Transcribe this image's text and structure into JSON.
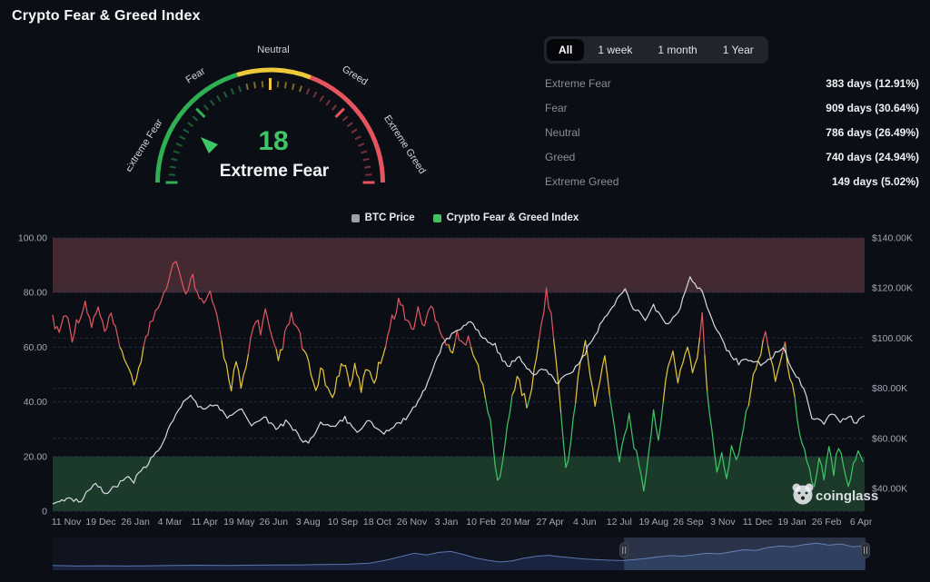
{
  "page": {
    "title": "Crypto Fear & Greed Index"
  },
  "gauge": {
    "value": "18",
    "status": "Extreme Fear",
    "scale_labels": {
      "extreme_fear": "Extreme Fear",
      "fear": "Fear",
      "neutral": "Neutral",
      "greed": "Greed",
      "extreme_greed": "Extreme Greed"
    },
    "colors": {
      "green": "#2eb053",
      "yellow": "#edc93b",
      "red": "#e45560",
      "value": "#3ec565"
    }
  },
  "tabs": {
    "items": [
      {
        "label": "All",
        "active": true
      },
      {
        "label": "1 week",
        "active": false
      },
      {
        "label": "1 month",
        "active": false
      },
      {
        "label": "1 Year",
        "active": false
      }
    ]
  },
  "stats": {
    "rows": [
      {
        "label": "Extreme Fear",
        "value": "383 days (12.91%)"
      },
      {
        "label": "Fear",
        "value": "909 days (30.64%)"
      },
      {
        "label": "Neutral",
        "value": "786 days (26.49%)"
      },
      {
        "label": "Greed",
        "value": "740 days (24.94%)"
      },
      {
        "label": "Extreme Greed",
        "value": "149 days (5.02%)"
      }
    ]
  },
  "legend": {
    "items": [
      {
        "label": "BTC Price",
        "color": "#9aa1ab"
      },
      {
        "label": "Crypto Fear & Greed Index",
        "color": "#3cc55e"
      }
    ]
  },
  "watermark": {
    "text": "coinglass"
  },
  "chart_data": {
    "type": "line",
    "title": "Crypto Fear & Greed Index vs BTC Price",
    "x_tick_labels": [
      "11 Nov",
      "19 Dec",
      "26 Jan",
      "4 Mar",
      "11 Apr",
      "19 May",
      "26 Jun",
      "3 Aug",
      "10 Sep",
      "18 Oct",
      "26 Nov",
      "3 Jan",
      "10 Feb",
      "20 Mar",
      "27 Apr",
      "4 Jun",
      "12 Jul",
      "19 Aug",
      "26 Sep",
      "3 Nov",
      "11 Dec",
      "19 Jan",
      "26 Feb",
      "6 Apr"
    ],
    "left_axis": {
      "ticks": [
        "100.00",
        "80.00",
        "60.00",
        "40.00",
        "20.00",
        "0"
      ],
      "tick_values": [
        100,
        80,
        60,
        40,
        20,
        0
      ],
      "range": [
        0,
        100
      ]
    },
    "right_axis": {
      "ticks": [
        "$140.00K",
        "$120.00K",
        "$100.00K",
        "$80.00K",
        "$60.00K",
        "$40.00K"
      ],
      "tick_values": [
        140,
        120,
        100,
        80,
        60,
        40
      ],
      "unit": "USD thousands"
    },
    "bands": [
      {
        "from": 80,
        "to": 100,
        "color": "#432a31",
        "label": "extreme-greed-zone"
      },
      {
        "from": 0,
        "to": 20,
        "color": "#1c3a2a",
        "label": "extreme-fear-zone"
      }
    ],
    "grid": true,
    "legend_position": "top-center",
    "series": [
      {
        "name": "BTC Price",
        "axis": "right",
        "color": "#d7dae0",
        "unit": "K USD",
        "points": [
          [
            0,
            34.5
          ],
          [
            0.02,
            36
          ],
          [
            0.035,
            35
          ],
          [
            0.05,
            42
          ],
          [
            0.065,
            38.5
          ],
          [
            0.08,
            41
          ],
          [
            0.09,
            44.5
          ],
          [
            0.1,
            43
          ],
          [
            0.115,
            49
          ],
          [
            0.13,
            55
          ],
          [
            0.145,
            65
          ],
          [
            0.155,
            72
          ],
          [
            0.17,
            77
          ],
          [
            0.185,
            71
          ],
          [
            0.2,
            74
          ],
          [
            0.215,
            68
          ],
          [
            0.23,
            72
          ],
          [
            0.245,
            66
          ],
          [
            0.26,
            69
          ],
          [
            0.275,
            64
          ],
          [
            0.29,
            67
          ],
          [
            0.305,
            60
          ],
          [
            0.315,
            58
          ],
          [
            0.33,
            66
          ],
          [
            0.345,
            64
          ],
          [
            0.36,
            68
          ],
          [
            0.375,
            63
          ],
          [
            0.39,
            67
          ],
          [
            0.405,
            62
          ],
          [
            0.42,
            65
          ],
          [
            0.435,
            68
          ],
          [
            0.45,
            74
          ],
          [
            0.465,
            85
          ],
          [
            0.48,
            97
          ],
          [
            0.5,
            104
          ],
          [
            0.515,
            106
          ],
          [
            0.53,
            100
          ],
          [
            0.545,
            97
          ],
          [
            0.56,
            88
          ],
          [
            0.575,
            93
          ],
          [
            0.59,
            85
          ],
          [
            0.605,
            88
          ],
          [
            0.62,
            82
          ],
          [
            0.635,
            86
          ],
          [
            0.65,
            90
          ],
          [
            0.665,
            100
          ],
          [
            0.68,
            108
          ],
          [
            0.695,
            115
          ],
          [
            0.705,
            120
          ],
          [
            0.715,
            112
          ],
          [
            0.73,
            108
          ],
          [
            0.74,
            113
          ],
          [
            0.755,
            105
          ],
          [
            0.77,
            110
          ],
          [
            0.785,
            124
          ],
          [
            0.8,
            118
          ],
          [
            0.815,
            105
          ],
          [
            0.83,
            95
          ],
          [
            0.845,
            90
          ],
          [
            0.86,
            92
          ],
          [
            0.875,
            89
          ],
          [
            0.89,
            94
          ],
          [
            0.9,
            96
          ],
          [
            0.91,
            88
          ],
          [
            0.925,
            80
          ],
          [
            0.935,
            68
          ],
          [
            0.95,
            66
          ],
          [
            0.96,
            70
          ],
          [
            0.97,
            67
          ],
          [
            0.98,
            69
          ],
          [
            0.99,
            66
          ],
          [
            1,
            69
          ]
        ]
      },
      {
        "name": "Crypto Fear & Greed Index",
        "axis": "left",
        "thresholds": {
          "high": 60,
          "low": 40
        },
        "colors": {
          "high": "#dc5560",
          "mid": "#e2c23c",
          "low": "#3dc364"
        },
        "points": [
          [
            0,
            70
          ],
          [
            0.008,
            66
          ],
          [
            0.016,
            73
          ],
          [
            0.024,
            64
          ],
          [
            0.032,
            71
          ],
          [
            0.04,
            75
          ],
          [
            0.048,
            68
          ],
          [
            0.056,
            74
          ],
          [
            0.064,
            65
          ],
          [
            0.072,
            71
          ],
          [
            0.08,
            63
          ],
          [
            0.088,
            57
          ],
          [
            0.094,
            50
          ],
          [
            0.1,
            46
          ],
          [
            0.106,
            53
          ],
          [
            0.112,
            60
          ],
          [
            0.12,
            68
          ],
          [
            0.13,
            76
          ],
          [
            0.14,
            83
          ],
          [
            0.148,
            90
          ],
          [
            0.152,
            93
          ],
          [
            0.158,
            84
          ],
          [
            0.164,
            78
          ],
          [
            0.17,
            87
          ],
          [
            0.178,
            82
          ],
          [
            0.186,
            75
          ],
          [
            0.194,
            80
          ],
          [
            0.202,
            70
          ],
          [
            0.208,
            62
          ],
          [
            0.214,
            53
          ],
          [
            0.22,
            46
          ],
          [
            0.226,
            55
          ],
          [
            0.232,
            44
          ],
          [
            0.238,
            52
          ],
          [
            0.244,
            63
          ],
          [
            0.25,
            71
          ],
          [
            0.256,
            66
          ],
          [
            0.262,
            73
          ],
          [
            0.27,
            62
          ],
          [
            0.278,
            55
          ],
          [
            0.286,
            64
          ],
          [
            0.294,
            71
          ],
          [
            0.302,
            66
          ],
          [
            0.31,
            58
          ],
          [
            0.318,
            50
          ],
          [
            0.324,
            44
          ],
          [
            0.33,
            52
          ],
          [
            0.336,
            47
          ],
          [
            0.342,
            41
          ],
          [
            0.35,
            48
          ],
          [
            0.358,
            55
          ],
          [
            0.366,
            47
          ],
          [
            0.372,
            52
          ],
          [
            0.38,
            45
          ],
          [
            0.388,
            53
          ],
          [
            0.396,
            48
          ],
          [
            0.404,
            55
          ],
          [
            0.41,
            62
          ],
          [
            0.418,
            70
          ],
          [
            0.426,
            77
          ],
          [
            0.434,
            72
          ],
          [
            0.442,
            66
          ],
          [
            0.45,
            73
          ],
          [
            0.458,
            68
          ],
          [
            0.466,
            75
          ],
          [
            0.474,
            70
          ],
          [
            0.482,
            63
          ],
          [
            0.49,
            58
          ],
          [
            0.498,
            64
          ],
          [
            0.506,
            60
          ],
          [
            0.512,
            66
          ],
          [
            0.518,
            58
          ],
          [
            0.524,
            52
          ],
          [
            0.53,
            45
          ],
          [
            0.536,
            38
          ],
          [
            0.542,
            25
          ],
          [
            0.548,
            10
          ],
          [
            0.554,
            18
          ],
          [
            0.56,
            30
          ],
          [
            0.566,
            42
          ],
          [
            0.572,
            50
          ],
          [
            0.578,
            44
          ],
          [
            0.584,
            38
          ],
          [
            0.59,
            46
          ],
          [
            0.596,
            55
          ],
          [
            0.602,
            70
          ],
          [
            0.608,
            80
          ],
          [
            0.614,
            72
          ],
          [
            0.62,
            55
          ],
          [
            0.626,
            35
          ],
          [
            0.632,
            16
          ],
          [
            0.638,
            25
          ],
          [
            0.644,
            40
          ],
          [
            0.65,
            55
          ],
          [
            0.656,
            62
          ],
          [
            0.662,
            50
          ],
          [
            0.668,
            38
          ],
          [
            0.674,
            48
          ],
          [
            0.68,
            56
          ],
          [
            0.686,
            44
          ],
          [
            0.692,
            30
          ],
          [
            0.698,
            20
          ],
          [
            0.704,
            28
          ],
          [
            0.71,
            35
          ],
          [
            0.716,
            25
          ],
          [
            0.722,
            15
          ],
          [
            0.728,
            8
          ],
          [
            0.734,
            22
          ],
          [
            0.74,
            35
          ],
          [
            0.746,
            28
          ],
          [
            0.752,
            40
          ],
          [
            0.758,
            52
          ],
          [
            0.764,
            58
          ],
          [
            0.77,
            48
          ],
          [
            0.776,
            55
          ],
          [
            0.782,
            60
          ],
          [
            0.788,
            52
          ],
          [
            0.794,
            55
          ],
          [
            0.8,
            71
          ],
          [
            0.806,
            45
          ],
          [
            0.812,
            28
          ],
          [
            0.818,
            15
          ],
          [
            0.824,
            22
          ],
          [
            0.83,
            12
          ],
          [
            0.836,
            25
          ],
          [
            0.842,
            18
          ],
          [
            0.848,
            28
          ],
          [
            0.854,
            35
          ],
          [
            0.86,
            45
          ],
          [
            0.866,
            52
          ],
          [
            0.872,
            58
          ],
          [
            0.878,
            65
          ],
          [
            0.884,
            58
          ],
          [
            0.89,
            48
          ],
          [
            0.896,
            55
          ],
          [
            0.902,
            60
          ],
          [
            0.908,
            50
          ],
          [
            0.914,
            40
          ],
          [
            0.92,
            30
          ],
          [
            0.926,
            22
          ],
          [
            0.932,
            15
          ],
          [
            0.938,
            8
          ],
          [
            0.944,
            18
          ],
          [
            0.95,
            12
          ],
          [
            0.956,
            22
          ],
          [
            0.962,
            15
          ],
          [
            0.968,
            25
          ],
          [
            0.974,
            18
          ],
          [
            0.98,
            10
          ],
          [
            0.986,
            16
          ],
          [
            0.992,
            22
          ],
          [
            0.998,
            18
          ]
        ]
      }
    ],
    "navigator": {
      "selection": [
        0.703,
        1
      ],
      "points": [
        [
          0,
          0.1
        ],
        [
          0.03,
          0.08
        ],
        [
          0.06,
          0.09
        ],
        [
          0.09,
          0.08
        ],
        [
          0.12,
          0.09
        ],
        [
          0.15,
          0.1
        ],
        [
          0.18,
          0.11
        ],
        [
          0.21,
          0.1
        ],
        [
          0.24,
          0.11
        ],
        [
          0.27,
          0.12
        ],
        [
          0.3,
          0.12
        ],
        [
          0.33,
          0.13
        ],
        [
          0.36,
          0.14
        ],
        [
          0.39,
          0.18
        ],
        [
          0.41,
          0.28
        ],
        [
          0.43,
          0.42
        ],
        [
          0.445,
          0.52
        ],
        [
          0.46,
          0.46
        ],
        [
          0.475,
          0.55
        ],
        [
          0.49,
          0.58
        ],
        [
          0.505,
          0.48
        ],
        [
          0.52,
          0.36
        ],
        [
          0.535,
          0.28
        ],
        [
          0.55,
          0.22
        ],
        [
          0.565,
          0.26
        ],
        [
          0.58,
          0.35
        ],
        [
          0.595,
          0.42
        ],
        [
          0.61,
          0.45
        ],
        [
          0.625,
          0.4
        ],
        [
          0.64,
          0.36
        ],
        [
          0.655,
          0.32
        ],
        [
          0.67,
          0.3
        ],
        [
          0.685,
          0.28
        ],
        [
          0.7,
          0.27
        ],
        [
          0.715,
          0.3
        ],
        [
          0.73,
          0.34
        ],
        [
          0.745,
          0.4
        ],
        [
          0.76,
          0.44
        ],
        [
          0.775,
          0.42
        ],
        [
          0.79,
          0.47
        ],
        [
          0.805,
          0.52
        ],
        [
          0.82,
          0.5
        ],
        [
          0.835,
          0.57
        ],
        [
          0.85,
          0.64
        ],
        [
          0.865,
          0.62
        ],
        [
          0.88,
          0.72
        ],
        [
          0.895,
          0.77
        ],
        [
          0.91,
          0.74
        ],
        [
          0.925,
          0.82
        ],
        [
          0.94,
          0.87
        ],
        [
          0.955,
          0.8
        ],
        [
          0.97,
          0.84
        ],
        [
          0.985,
          0.74
        ],
        [
          1,
          0.78
        ]
      ]
    }
  }
}
